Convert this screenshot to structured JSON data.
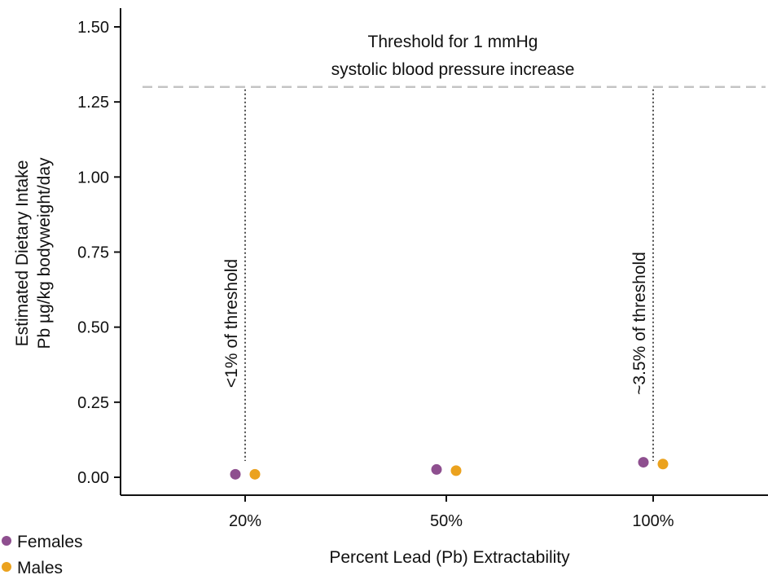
{
  "chart_data": {
    "type": "scatter",
    "title": "",
    "xlabel": "Percent Lead (Pb) Extractability",
    "ylabel_lines": [
      "Estimated Dietary Intake",
      "Pb µg/kg bodyweight/day"
    ],
    "categories": [
      "20%",
      "50%",
      "100%"
    ],
    "ylim": [
      0,
      1.5
    ],
    "yticks": [
      "0.00",
      "0.25",
      "0.50",
      "0.75",
      "1.00",
      "1.25",
      "1.50"
    ],
    "series": [
      {
        "name": "Females",
        "color": "#8e4f8f",
        "values": [
          0.01,
          0.026,
          0.05
        ]
      },
      {
        "name": "Males",
        "color": "#eba21e",
        "values": [
          0.01,
          0.022,
          0.044
        ]
      }
    ],
    "threshold": {
      "value": 1.3,
      "label_lines": [
        "Threshold for 1 mmHg",
        "systolic blood pressure increase"
      ],
      "color": "#c4c4c4"
    },
    "annotations": [
      {
        "category": "20%",
        "text": "<1% of threshold"
      },
      {
        "category": "100%",
        "text": "~3.5% of threshold"
      }
    ],
    "legend_position": "bottom-left",
    "grid": false
  }
}
